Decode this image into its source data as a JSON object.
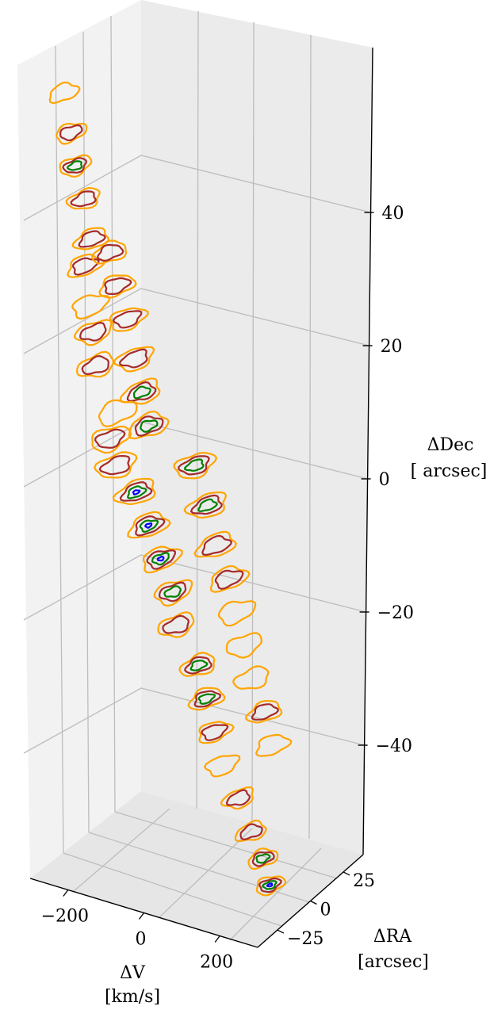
{
  "chart_data": {
    "type": "contour3d",
    "axes": {
      "dec": {
        "label_line1": "ΔDec",
        "label_line2": "[ arcsec]",
        "ticks": [
          "40",
          "20",
          "0",
          "−20",
          "−40"
        ],
        "tick_values": [
          40,
          20,
          0,
          -20,
          -40
        ],
        "range": [
          -60,
          60
        ]
      },
      "vel": {
        "label_line1": "ΔV",
        "label_line2": "[km/s]",
        "ticks": [
          "−200",
          "0",
          "200"
        ],
        "tick_values": [
          -200,
          0,
          200
        ],
        "range": [
          -300,
          300
        ]
      },
      "ra": {
        "label_line1": "ΔRA",
        "label_line2": "[arcsec]",
        "ticks": [
          "25",
          "0",
          "−25"
        ],
        "tick_values": [
          25,
          0,
          -25
        ],
        "range": [
          -40,
          40
        ]
      }
    },
    "grid": true,
    "contour_levels": [
      {
        "level": 1,
        "color": "#FFA500"
      },
      {
        "level": 2,
        "color": "#A52A2A"
      },
      {
        "level": 3,
        "color": "#008000"
      },
      {
        "level": 4,
        "color": "#0000FF"
      }
    ],
    "contours": [
      {
        "v": -200,
        "dec": 58,
        "levels": 1
      },
      {
        "v": -190,
        "dec": 52,
        "levels": 2
      },
      {
        "v": -185,
        "dec": 47,
        "levels": 3
      },
      {
        "v": -170,
        "dec": 42,
        "levels": 2
      },
      {
        "v": -160,
        "dec": 36,
        "levels": 2
      },
      {
        "v": -180,
        "dec": 32,
        "levels": 2
      },
      {
        "v": -175,
        "dec": 26,
        "levels": 1
      },
      {
        "v": -170,
        "dec": 22,
        "levels": 2
      },
      {
        "v": -170,
        "dec": 17,
        "levels": 2
      },
      {
        "v": -120,
        "dec": 34,
        "levels": 2
      },
      {
        "v": -110,
        "dec": 29,
        "levels": 2
      },
      {
        "v": -90,
        "dec": 24,
        "levels": 2
      },
      {
        "v": -80,
        "dec": 18,
        "levels": 2
      },
      {
        "v": -70,
        "dec": 13,
        "levels": 3
      },
      {
        "v": -60,
        "dec": 8,
        "levels": 3
      },
      {
        "v": -130,
        "dec": 10,
        "levels": 1
      },
      {
        "v": -150,
        "dec": 6,
        "levels": 2
      },
      {
        "v": -140,
        "dec": 2,
        "levels": 2
      },
      {
        "v": -100,
        "dec": -2,
        "levels": 4
      },
      {
        "v": -80,
        "dec": -7,
        "levels": 4
      },
      {
        "v": -60,
        "dec": -12,
        "levels": 4
      },
      {
        "v": -40,
        "dec": -17,
        "levels": 3
      },
      {
        "v": -40,
        "dec": -22,
        "levels": 2
      },
      {
        "v": 0,
        "dec": -28,
        "levels": 3
      },
      {
        "v": 10,
        "dec": -33,
        "levels": 3
      },
      {
        "v": 20,
        "dec": -38,
        "levels": 2
      },
      {
        "v": 30,
        "dec": -43,
        "levels": 1
      },
      {
        "v": 60,
        "dec": -48,
        "levels": 2
      },
      {
        "v": 80,
        "dec": -53,
        "levels": 2
      },
      {
        "v": 100,
        "dec": -57,
        "levels": 3
      },
      {
        "v": 110,
        "dec": -61,
        "levels": 4
      },
      {
        "v": 40,
        "dec": 2,
        "levels": 3
      },
      {
        "v": 60,
        "dec": -4,
        "levels": 3
      },
      {
        "v": 70,
        "dec": -10,
        "levels": 2
      },
      {
        "v": 90,
        "dec": -15,
        "levels": 2
      },
      {
        "v": 100,
        "dec": -20,
        "levels": 1
      },
      {
        "v": 110,
        "dec": -25,
        "levels": 1
      },
      {
        "v": 120,
        "dec": -30,
        "levels": 1
      },
      {
        "v": 140,
        "dec": -35,
        "levels": 2
      },
      {
        "v": 150,
        "dec": -40,
        "levels": 1
      }
    ]
  }
}
